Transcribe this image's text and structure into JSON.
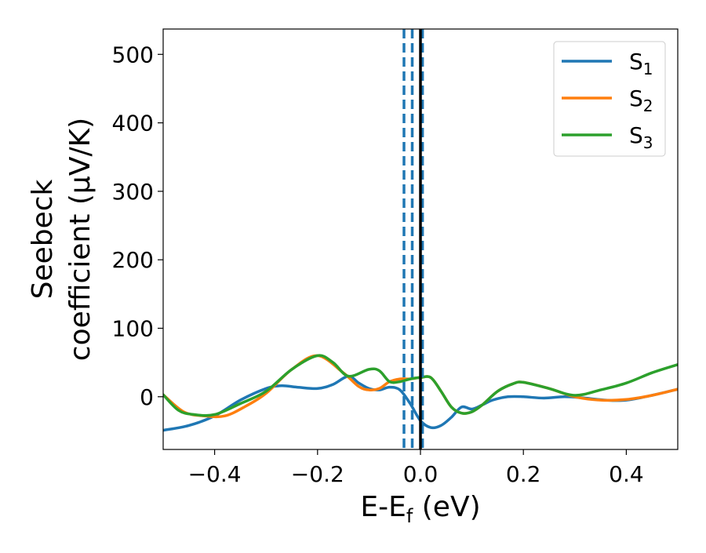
{
  "chart_data": {
    "type": "line",
    "title": "",
    "xlabel": "E-E",
    "xlabel_sub": "f",
    "xlabel_unit": " (eV)",
    "ylabel_line1": "Seebeck",
    "ylabel_line2": "coefficient  (μV/K)",
    "xlim": [
      -0.5,
      0.5
    ],
    "ylim": [
      -77,
      537
    ],
    "xticks": [
      -0.4,
      -0.2,
      0.0,
      0.2,
      0.4
    ],
    "xtick_labels": [
      "−0.4",
      "−0.2",
      "0.0",
      "0.2",
      "0.4"
    ],
    "yticks": [
      0,
      100,
      200,
      300,
      400,
      500
    ],
    "ytick_labels": [
      "0",
      "100",
      "200",
      "300",
      "400",
      "500"
    ],
    "grid": false,
    "legend_position": "top-right",
    "vlines": [
      {
        "x": -0.032,
        "style": "dashed",
        "color": "#1f77b4"
      },
      {
        "x": -0.016,
        "style": "dashed",
        "color": "#1f77b4"
      },
      {
        "x": 0.004,
        "style": "dashed",
        "color": "#1f77b4"
      },
      {
        "x": 0.0,
        "style": "solid",
        "color": "#000000"
      }
    ],
    "series": [
      {
        "name": "S",
        "sub": "1",
        "color": "#1f77b4",
        "x": [
          -0.5,
          -0.45,
          -0.4,
          -0.35,
          -0.3,
          -0.27,
          -0.24,
          -0.2,
          -0.17,
          -0.14,
          -0.12,
          -0.1,
          -0.08,
          -0.06,
          -0.04,
          -0.02,
          0.0,
          0.02,
          0.04,
          0.06,
          0.08,
          0.1,
          0.12,
          0.14,
          0.17,
          0.2,
          0.24,
          0.28,
          0.32,
          0.36,
          0.4,
          0.45,
          0.5
        ],
        "y": [
          -49,
          -42,
          -28,
          -5,
          12,
          16,
          14,
          12,
          18,
          30,
          20,
          12,
          10,
          14,
          10,
          -10,
          -35,
          -45,
          -42,
          -30,
          -15,
          -18,
          -12,
          -5,
          0,
          0,
          -2,
          0,
          -2,
          -5,
          -5,
          2,
          11
        ]
      },
      {
        "name": "S",
        "sub": "2",
        "color": "#ff7f0e",
        "x": [
          -0.5,
          -0.46,
          -0.42,
          -0.38,
          -0.34,
          -0.3,
          -0.25,
          -0.2,
          -0.15,
          -0.12,
          -0.1,
          -0.08,
          -0.06,
          -0.04,
          -0.02,
          0.0,
          0.02,
          0.04,
          0.06,
          0.08,
          0.1,
          0.12,
          0.15,
          0.18,
          0.2,
          0.25,
          0.3,
          0.35,
          0.4,
          0.45,
          0.5
        ],
        "y": [
          3,
          -22,
          -28,
          -28,
          -14,
          5,
          40,
          60,
          35,
          15,
          10,
          12,
          22,
          26,
          26,
          28,
          28,
          8,
          -15,
          -24,
          -22,
          -12,
          8,
          19,
          21,
          12,
          0,
          -5,
          -4,
          2,
          11
        ]
      },
      {
        "name": "S",
        "sub": "3",
        "color": "#2ca02c",
        "x": [
          -0.5,
          -0.47,
          -0.44,
          -0.4,
          -0.35,
          -0.3,
          -0.25,
          -0.2,
          -0.17,
          -0.14,
          -0.1,
          -0.08,
          -0.06,
          -0.04,
          -0.02,
          0.0,
          0.02,
          0.04,
          0.06,
          0.08,
          0.1,
          0.12,
          0.15,
          0.18,
          0.2,
          0.25,
          0.3,
          0.35,
          0.4,
          0.45,
          0.5
        ],
        "y": [
          3,
          -20,
          -26,
          -26,
          -10,
          8,
          40,
          60,
          50,
          30,
          40,
          38,
          22,
          22,
          26,
          28,
          28,
          8,
          -15,
          -24,
          -22,
          -12,
          8,
          19,
          21,
          12,
          2,
          10,
          20,
          35,
          47
        ]
      }
    ]
  }
}
